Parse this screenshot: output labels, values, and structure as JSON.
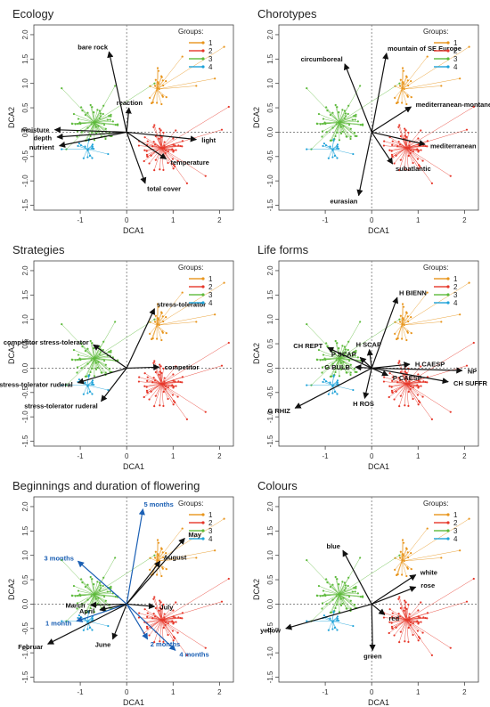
{
  "colors": {
    "g1": "#e8951c",
    "g2": "#e6372a",
    "g3": "#5dba3b",
    "g4": "#1fa3d9",
    "vector": "#111111",
    "month_vector": "#1a5fb4"
  },
  "chart_data": [
    {
      "type": "scatter",
      "title": "Ecology",
      "xlabel": "DCA1",
      "ylabel": "DCA2",
      "xlim": [
        -2,
        2.3
      ],
      "ylim": [
        -1.6,
        2.2
      ],
      "xticks": [
        -1,
        0,
        1,
        2
      ],
      "yticks": [
        -1.5,
        -1,
        -0.5,
        0,
        0.5,
        1,
        1.5,
        2
      ],
      "legend": {
        "title": "Groups:",
        "labels": [
          "1",
          "2",
          "3",
          "4"
        ],
        "placement": "top-right"
      },
      "centroids": [
        {
          "group": "1",
          "x": 0.65,
          "y": 0.88
        },
        {
          "group": "2",
          "x": 0.75,
          "y": -0.32
        },
        {
          "group": "3",
          "x": -0.7,
          "y": 0.2
        },
        {
          "group": "4",
          "x": -0.85,
          "y": -0.35
        }
      ],
      "vectors": [
        {
          "label": "bare rock",
          "x": -0.38,
          "y": 1.65
        },
        {
          "label": "reaction",
          "x": 0.05,
          "y": 0.5
        },
        {
          "label": "moisture",
          "x": -1.55,
          "y": 0.05
        },
        {
          "label": "depth",
          "x": -1.5,
          "y": -0.1
        },
        {
          "label": "nutrient",
          "x": -1.45,
          "y": -0.28
        },
        {
          "label": "light",
          "x": 1.5,
          "y": -0.15
        },
        {
          "label": "temperature",
          "x": 0.85,
          "y": -0.55
        },
        {
          "label": "total cover",
          "x": 0.4,
          "y": -1.05
        }
      ]
    },
    {
      "type": "scatter",
      "title": "Chorotypes",
      "xlabel": "DCA1",
      "ylabel": "DCA2",
      "xlim": [
        -2,
        2.3
      ],
      "ylim": [
        -1.6,
        2.2
      ],
      "xticks": [
        -1,
        0,
        1,
        2
      ],
      "yticks": [
        -1.5,
        -1,
        -0.5,
        0,
        0.5,
        1,
        1.5,
        2
      ],
      "legend": {
        "title": "Groups:",
        "labels": [
          "1",
          "2",
          "3",
          "4"
        ],
        "placement": "top-right"
      },
      "centroids": [
        {
          "group": "1",
          "x": 0.65,
          "y": 0.88
        },
        {
          "group": "2",
          "x": 0.75,
          "y": -0.32
        },
        {
          "group": "3",
          "x": -0.7,
          "y": 0.2
        },
        {
          "group": "4",
          "x": -0.85,
          "y": -0.35
        }
      ],
      "vectors": [
        {
          "label": "circumboreal",
          "x": -0.58,
          "y": 1.4
        },
        {
          "label": "mountain of SE Europe",
          "x": 0.32,
          "y": 1.62
        },
        {
          "label": "mediterranean-montane",
          "x": 0.85,
          "y": 0.52
        },
        {
          "label": "mediterranean",
          "x": 1.15,
          "y": -0.25
        },
        {
          "label": "subatlantic",
          "x": 0.45,
          "y": -0.65
        },
        {
          "label": "eurasian",
          "x": -0.28,
          "y": -1.3
        }
      ]
    },
    {
      "type": "scatter",
      "title": "Strategies",
      "xlabel": "DCA1",
      "ylabel": "DCA2",
      "xlim": [
        -2,
        2.3
      ],
      "ylim": [
        -1.6,
        2.2
      ],
      "xticks": [
        -1,
        0,
        1,
        2
      ],
      "yticks": [
        -1.5,
        -1,
        -0.5,
        0,
        0.5,
        1,
        1.5,
        2
      ],
      "legend": {
        "title": "Groups:",
        "labels": [
          "1",
          "2",
          "3",
          "4"
        ],
        "placement": "top-right"
      },
      "centroids": [
        {
          "group": "1",
          "x": 0.65,
          "y": 0.88
        },
        {
          "group": "2",
          "x": 0.75,
          "y": -0.32
        },
        {
          "group": "3",
          "x": -0.7,
          "y": 0.2
        },
        {
          "group": "4",
          "x": -0.85,
          "y": -0.35
        }
      ],
      "vectors": [
        {
          "label": "stress-tolerator",
          "x": 0.6,
          "y": 1.22
        },
        {
          "label": "competitor stress-tolerator",
          "x": -0.72,
          "y": 0.48
        },
        {
          "label": "competitor",
          "x": 0.7,
          "y": 0.02
        },
        {
          "label": "competitor stress-tolerator ruderal",
          "x": -1.05,
          "y": -0.3
        },
        {
          "label": "stress-tolerator ruderal",
          "x": -0.55,
          "y": -0.68
        }
      ]
    },
    {
      "type": "scatter",
      "title": "Life forms",
      "xlabel": "DCA1",
      "ylabel": "DCA2",
      "xlim": [
        -2,
        2.3
      ],
      "ylim": [
        -1.6,
        2.2
      ],
      "xticks": [
        -1,
        0,
        1,
        2
      ],
      "yticks": [
        -1.5,
        -1,
        -0.5,
        0,
        0.5,
        1,
        1.5,
        2
      ],
      "legend": {
        "title": "Groups:",
        "labels": [
          "1",
          "2",
          "3",
          "4"
        ],
        "placement": "top-right"
      },
      "centroids": [
        {
          "group": "1",
          "x": 0.65,
          "y": 0.88
        },
        {
          "group": "2",
          "x": 0.75,
          "y": -0.32
        },
        {
          "group": "3",
          "x": -0.7,
          "y": 0.2
        },
        {
          "group": "4",
          "x": -0.85,
          "y": -0.35
        }
      ],
      "vectors": [
        {
          "label": "H BIENN",
          "x": 0.55,
          "y": 1.45
        },
        {
          "label": "CH REPT",
          "x": -0.95,
          "y": 0.42
        },
        {
          "label": "H SCAP",
          "x": -0.05,
          "y": 0.38
        },
        {
          "label": "P SCAP",
          "x": -0.25,
          "y": 0.22
        },
        {
          "label": "G BULB",
          "x": -0.35,
          "y": 0.02
        },
        {
          "label": "H CAESP",
          "x": 0.82,
          "y": 0.08
        },
        {
          "label": "NP",
          "x": 1.95,
          "y": -0.05
        },
        {
          "label": "P CAESP",
          "x": 0.35,
          "y": -0.15
        },
        {
          "label": "CH SUFFR",
          "x": 1.65,
          "y": -0.28
        },
        {
          "label": "H ROS",
          "x": -0.15,
          "y": -0.62
        },
        {
          "label": "G RHIZ",
          "x": -1.65,
          "y": -0.82
        }
      ]
    },
    {
      "type": "scatter",
      "title": "Beginnings and duration of flowering",
      "xlabel": "DCA1",
      "ylabel": "DCA2",
      "xlim": [
        -2,
        2.3
      ],
      "ylim": [
        -1.6,
        2.2
      ],
      "xticks": [
        -1,
        0,
        1,
        2
      ],
      "yticks": [
        -1.5,
        -1,
        -0.5,
        0,
        0.5,
        1,
        1.5,
        2
      ],
      "legend": {
        "title": "Groups:",
        "labels": [
          "1",
          "2",
          "3",
          "4"
        ],
        "placement": "top-right"
      },
      "centroids": [
        {
          "group": "1",
          "x": 0.65,
          "y": 0.88
        },
        {
          "group": "2",
          "x": 0.75,
          "y": -0.32
        },
        {
          "group": "3",
          "x": -0.7,
          "y": 0.2
        },
        {
          "group": "4",
          "x": -0.85,
          "y": -0.35
        }
      ],
      "vectors": [
        {
          "label": "5 months",
          "x": 0.35,
          "y": 1.95,
          "blue": true
        },
        {
          "label": "May",
          "x": 1.25,
          "y": 1.35
        },
        {
          "label": "August",
          "x": 0.72,
          "y": 0.88
        },
        {
          "label": "3 months",
          "x": -1.05,
          "y": 0.88,
          "blue": true
        },
        {
          "label": "March",
          "x": -0.78,
          "y": -0.02
        },
        {
          "label": "July",
          "x": 0.6,
          "y": -0.05
        },
        {
          "label": "April",
          "x": -0.58,
          "y": -0.12
        },
        {
          "label": "1 month",
          "x": -1.08,
          "y": -0.35,
          "blue": true
        },
        {
          "label": "Februar",
          "x": -1.7,
          "y": -0.82
        },
        {
          "label": "June",
          "x": -0.3,
          "y": -0.72
        },
        {
          "label": "2 months",
          "x": 0.45,
          "y": -0.72,
          "blue": true
        },
        {
          "label": "4 months",
          "x": 1.05,
          "y": -0.95,
          "blue": true
        }
      ]
    },
    {
      "type": "scatter",
      "title": "Colours",
      "xlabel": "DCA1",
      "ylabel": "DCA2",
      "xlim": [
        -2,
        2.3
      ],
      "ylim": [
        -1.6,
        2.2
      ],
      "xticks": [
        -1,
        0,
        1,
        2
      ],
      "yticks": [
        -1.5,
        -1,
        -0.5,
        0,
        0.5,
        1,
        1.5,
        2
      ],
      "legend": {
        "title": "Groups:",
        "labels": [
          "1",
          "2",
          "3",
          "4"
        ],
        "placement": "top-right"
      },
      "centroids": [
        {
          "group": "1",
          "x": 0.65,
          "y": 0.88
        },
        {
          "group": "2",
          "x": 0.75,
          "y": -0.32
        },
        {
          "group": "3",
          "x": -0.7,
          "y": 0.2
        },
        {
          "group": "4",
          "x": -0.85,
          "y": -0.35
        }
      ],
      "vectors": [
        {
          "label": "blue",
          "x": -0.62,
          "y": 1.1
        },
        {
          "label": "white",
          "x": 0.95,
          "y": 0.6
        },
        {
          "label": "rose",
          "x": 0.95,
          "y": 0.35
        },
        {
          "label": "red",
          "x": 0.28,
          "y": -0.22
        },
        {
          "label": "yellow",
          "x": -1.85,
          "y": -0.5
        },
        {
          "label": "green",
          "x": 0.02,
          "y": -0.95
        }
      ]
    }
  ]
}
